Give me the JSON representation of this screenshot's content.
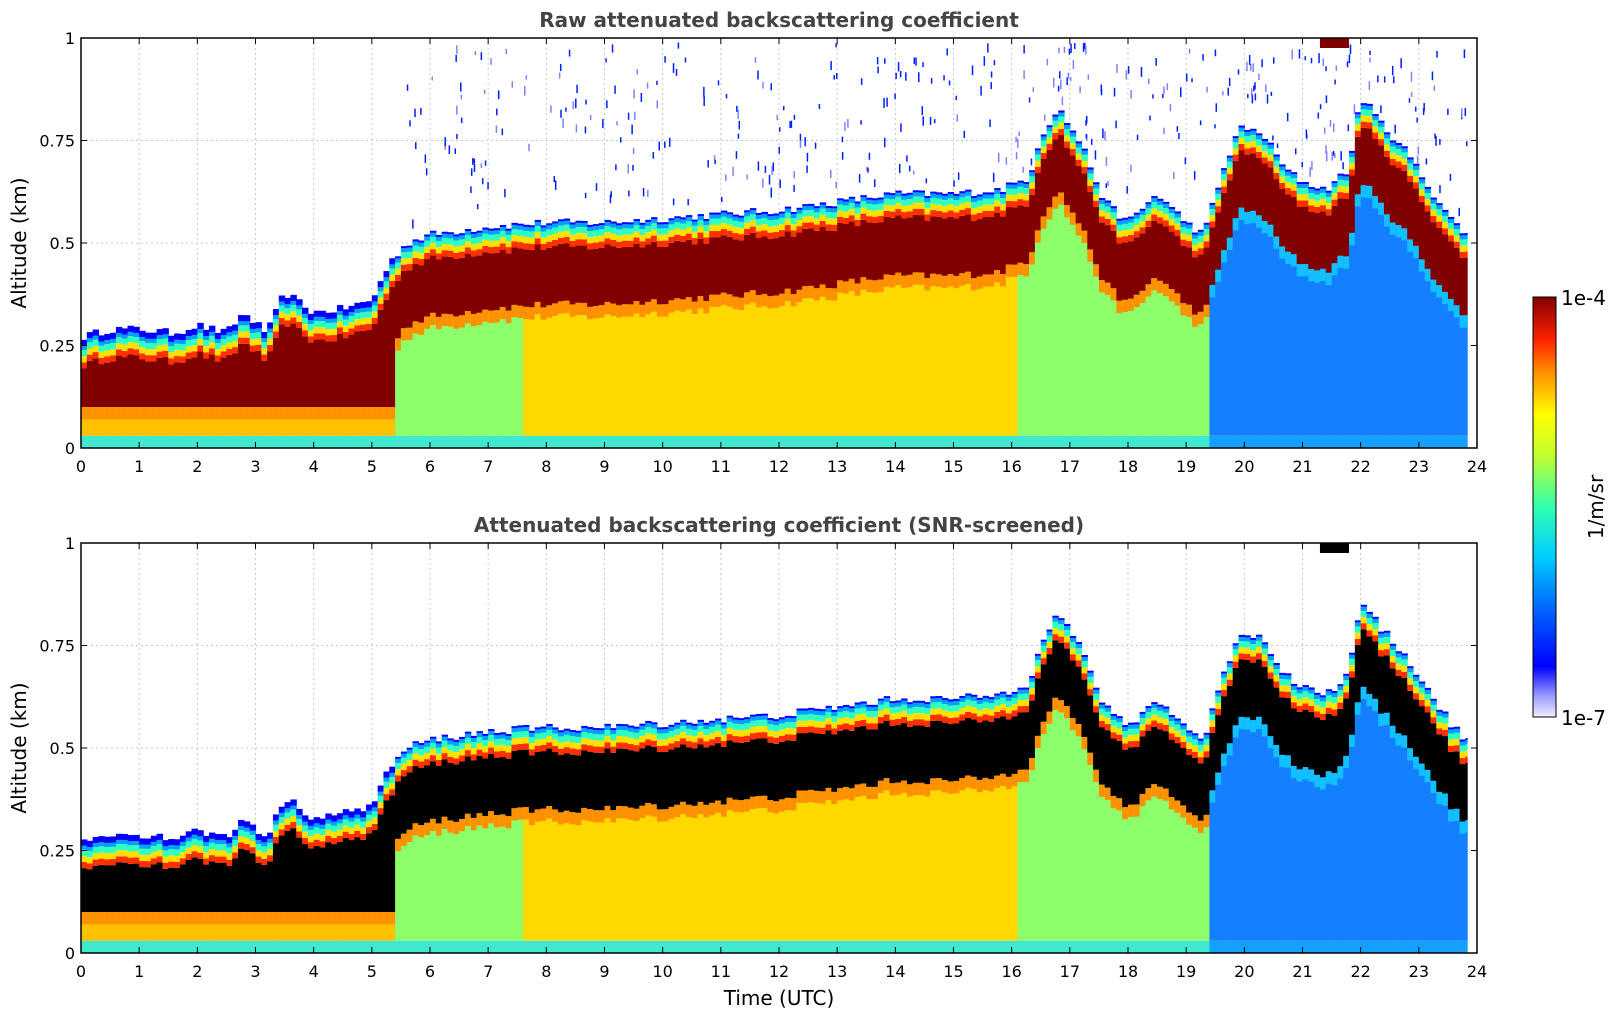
{
  "chart_data": [
    {
      "type": "heatmap",
      "title": "Raw attenuated backscattering coefficient",
      "ylabel": "Altitude (km)",
      "xlabel": "",
      "xlim": [
        0,
        24
      ],
      "ylim": [
        0,
        1
      ],
      "x_ticks": [
        "0",
        "1",
        "2",
        "3",
        "4",
        "5",
        "6",
        "7",
        "8",
        "9",
        "10",
        "11",
        "12",
        "13",
        "14",
        "15",
        "16",
        "17",
        "18",
        "19",
        "20",
        "21",
        "22",
        "23",
        "24"
      ],
      "y_ticks": [
        "0",
        "0.25",
        "0.5",
        "0.75",
        "1"
      ],
      "grid": true,
      "data_end_hour": 23.83,
      "layer_top_km": [
        [
          0,
          0.27
        ],
        [
          0.5,
          0.29
        ],
        [
          1,
          0.29
        ],
        [
          1.6,
          0.28
        ],
        [
          2,
          0.3
        ],
        [
          2.5,
          0.28
        ],
        [
          2.8,
          0.33
        ],
        [
          3.2,
          0.28
        ],
        [
          3.5,
          0.38
        ],
        [
          4,
          0.33
        ],
        [
          4.5,
          0.34
        ],
        [
          5,
          0.36
        ],
        [
          5.3,
          0.45
        ],
        [
          5.6,
          0.5
        ],
        [
          6,
          0.52
        ],
        [
          6.5,
          0.53
        ],
        [
          7,
          0.54
        ],
        [
          8,
          0.55
        ],
        [
          9,
          0.55
        ],
        [
          10,
          0.56
        ],
        [
          11,
          0.57
        ],
        [
          12,
          0.58
        ],
        [
          13,
          0.6
        ],
        [
          14,
          0.62
        ],
        [
          15,
          0.62
        ],
        [
          15.8,
          0.63
        ],
        [
          16.3,
          0.66
        ],
        [
          16.5,
          0.76
        ],
        [
          16.8,
          0.83
        ],
        [
          17.2,
          0.74
        ],
        [
          17.6,
          0.6
        ],
        [
          18,
          0.55
        ],
        [
          18.5,
          0.62
        ],
        [
          19,
          0.55
        ],
        [
          19.3,
          0.52
        ],
        [
          19.6,
          0.66
        ],
        [
          19.9,
          0.78
        ],
        [
          20.3,
          0.77
        ],
        [
          20.7,
          0.68
        ],
        [
          21,
          0.65
        ],
        [
          21.4,
          0.63
        ],
        [
          21.8,
          0.68
        ],
        [
          22,
          0.86
        ],
        [
          22.3,
          0.8
        ],
        [
          22.8,
          0.72
        ],
        [
          23.2,
          0.63
        ],
        [
          23.6,
          0.55
        ],
        [
          23.83,
          0.52
        ]
      ],
      "colorbar": {
        "min_label": "1e-7",
        "max_label": "1e-4",
        "label": "1/m/sr"
      }
    },
    {
      "type": "heatmap",
      "title": "Attenuated backscattering coefficient (SNR-screened)",
      "ylabel": "Altitude (km)",
      "xlabel": "Time (UTC)",
      "xlim": [
        0,
        24
      ],
      "ylim": [
        0,
        1
      ],
      "x_ticks": [
        "0",
        "1",
        "2",
        "3",
        "4",
        "5",
        "6",
        "7",
        "8",
        "9",
        "10",
        "11",
        "12",
        "13",
        "14",
        "15",
        "16",
        "17",
        "18",
        "19",
        "20",
        "21",
        "22",
        "23",
        "24"
      ],
      "y_ticks": [
        "0",
        "0.25",
        "0.5",
        "0.75",
        "1"
      ],
      "grid": true,
      "saturated_color": "#000000"
    }
  ],
  "colors": {
    "title": "#444444",
    "colormap": [
      "#eeeeff",
      "#c8c8ff",
      "#7878ff",
      "#0000ff",
      "#0050ff",
      "#00a0ff",
      "#00e0ff",
      "#30ffc0",
      "#a0ff60",
      "#ffff00",
      "#ffc000",
      "#ff7000",
      "#ff2000",
      "#c00000",
      "#800000"
    ]
  }
}
